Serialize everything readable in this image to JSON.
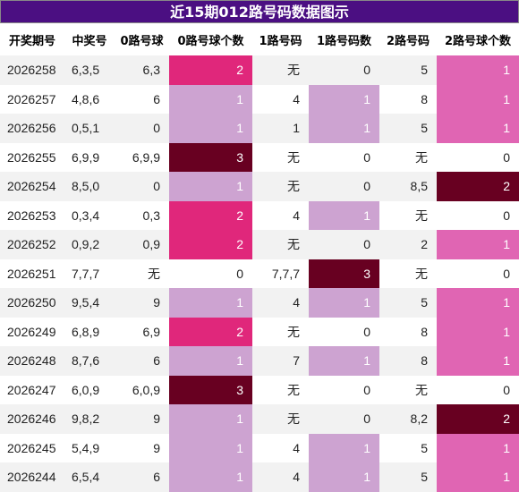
{
  "title": "近15期012路号码数据图示",
  "table": {
    "header": [
      "开奖期号",
      "中奖号",
      "0路号球",
      "0路号球个数",
      "1路号码",
      "1路号码数",
      "2路号码",
      "2路号球个数"
    ],
    "rows": [
      [
        "2026258",
        "6,3,5",
        "6,3",
        2,
        "无",
        0,
        "5",
        1
      ],
      [
        "2026257",
        "4,8,6",
        "6",
        1,
        "4",
        1,
        "8",
        1
      ],
      [
        "2026256",
        "0,5,1",
        "0",
        1,
        "1",
        1,
        "5",
        1
      ],
      [
        "2026255",
        "6,9,9",
        "6,9,9",
        3,
        "无",
        0,
        "无",
        0
      ],
      [
        "2026254",
        "8,5,0",
        "0",
        1,
        "无",
        0,
        "8,5",
        2
      ],
      [
        "2026253",
        "0,3,4",
        "0,3",
        2,
        "4",
        1,
        "无",
        0
      ],
      [
        "2026252",
        "0,9,2",
        "0,9",
        2,
        "无",
        0,
        "2",
        1
      ],
      [
        "2026251",
        "7,7,7",
        "无",
        0,
        "7,7,7",
        3,
        "无",
        0
      ],
      [
        "2026250",
        "9,5,4",
        "9",
        1,
        "4",
        1,
        "5",
        1
      ],
      [
        "2026249",
        "6,8,9",
        "6,9",
        2,
        "无",
        0,
        "8",
        1
      ],
      [
        "2026248",
        "8,7,6",
        "6",
        1,
        "7",
        1,
        "8",
        1
      ],
      [
        "2026247",
        "6,0,9",
        "6,0,9",
        3,
        "无",
        0,
        "无",
        0
      ],
      [
        "2026246",
        "9,8,2",
        "9",
        1,
        "无",
        0,
        "8,2",
        2
      ],
      [
        "2026245",
        "5,4,9",
        "9",
        1,
        "4",
        1,
        "5",
        1
      ],
      [
        "2026244",
        "6,5,4",
        "6",
        1,
        "4",
        1,
        "5",
        1
      ]
    ]
  }
}
